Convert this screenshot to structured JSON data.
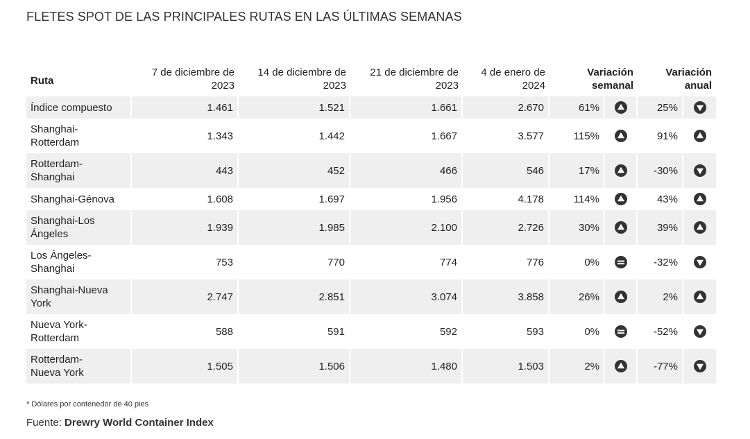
{
  "title": "FLETES SPOT DE LAS PRINCIPALES RUTAS EN LAS ÚLTIMAS SEMANAS",
  "chart_data": {
    "type": "table",
    "columns": [
      "Ruta",
      "7 de diciembre de 2023",
      "14 de diciembre de 2023",
      "21 de diciembre de 2023",
      "4 de enero de 2024",
      "Variación semanal",
      "Variación anual"
    ],
    "rows": [
      {
        "route": "Índice compuesto",
        "values": [
          "1.461",
          "1.521",
          "1.661",
          "2.670"
        ],
        "weekly": "61%",
        "weekly_dir": "up",
        "annual": "25%",
        "annual_dir": "down"
      },
      {
        "route": "Shanghai-Rotterdam",
        "values": [
          "1.343",
          "1.442",
          "1.667",
          "3.577"
        ],
        "weekly": "115%",
        "weekly_dir": "up",
        "annual": "91%",
        "annual_dir": "up"
      },
      {
        "route": "Rotterdam-Shanghai",
        "values": [
          "443",
          "452",
          "466",
          "546"
        ],
        "weekly": "17%",
        "weekly_dir": "up",
        "annual": "-30%",
        "annual_dir": "down"
      },
      {
        "route": "Shanghai-Génova",
        "values": [
          "1.608",
          "1.697",
          "1.956",
          "4.178"
        ],
        "weekly": "114%",
        "weekly_dir": "up",
        "annual": "43%",
        "annual_dir": "up"
      },
      {
        "route": "Shanghai-Los Ángeles",
        "values": [
          "1.939",
          "1.985",
          "2.100",
          "2.726"
        ],
        "weekly": "30%",
        "weekly_dir": "up",
        "annual": "39%",
        "annual_dir": "up"
      },
      {
        "route": "Los Ángeles-Shanghai",
        "values": [
          "753",
          "770",
          "774",
          "776"
        ],
        "weekly": "0%",
        "weekly_dir": "flat",
        "annual": "-32%",
        "annual_dir": "down"
      },
      {
        "route": "Shanghai-Nueva York",
        "values": [
          "2.747",
          "2.851",
          "3.074",
          "3.858"
        ],
        "weekly": "26%",
        "weekly_dir": "up",
        "annual": "2%",
        "annual_dir": "up"
      },
      {
        "route": "Nueva York-Rotterdam",
        "values": [
          "588",
          "591",
          "592",
          "593"
        ],
        "weekly": "0%",
        "weekly_dir": "flat",
        "annual": "-52%",
        "annual_dir": "down"
      },
      {
        "route": "Rotterdam-Nueva York",
        "values": [
          "1.505",
          "1.506",
          "1.480",
          "1.503"
        ],
        "weekly": "2%",
        "weekly_dir": "up",
        "annual": "-77%",
        "annual_dir": "down"
      }
    ],
    "icons": {
      "up": "triangle-up-icon",
      "down": "triangle-down-icon",
      "flat": "equal-icon"
    },
    "colors": {
      "icon": "#333333",
      "row_shade": "#efefef"
    }
  },
  "footnote": "* Dólares por contenedor de 40 pies",
  "source_label": "Fuente:",
  "source_name": "Drewry World Container Index"
}
